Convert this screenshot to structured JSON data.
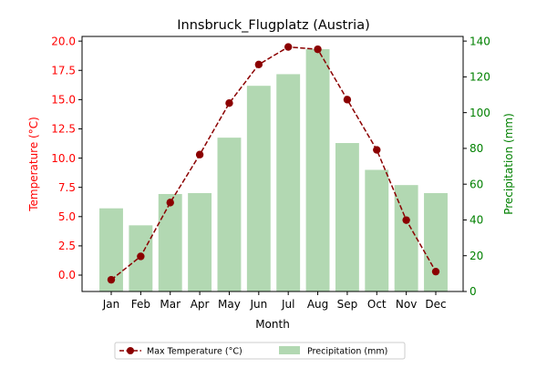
{
  "chart_data": {
    "type": "bar+line",
    "title": "Innsbruck_Flugplatz (Austria)",
    "xlabel": "Month",
    "ylabel_left": "Temperature (°C)",
    "ylabel_right": "Precipitation (mm)",
    "categories": [
      "Jan",
      "Feb",
      "Mar",
      "Apr",
      "May",
      "Jun",
      "Jul",
      "Aug",
      "Sep",
      "Oct",
      "Nov",
      "Dec"
    ],
    "ylim_left": [
      -1.4,
      20.4
    ],
    "ylim_right": [
      0,
      142.6
    ],
    "yticks_left": [
      "0.0",
      "2.5",
      "5.0",
      "7.5",
      "10.0",
      "12.5",
      "15.0",
      "17.5",
      "20.0"
    ],
    "yticks_left_values": [
      0,
      2.5,
      5,
      7.5,
      10,
      12.5,
      15,
      17.5,
      20
    ],
    "yticks_right": [
      "0",
      "20",
      "40",
      "60",
      "80",
      "100",
      "120",
      "140"
    ],
    "yticks_right_values": [
      0,
      20,
      40,
      60,
      80,
      100,
      120,
      140
    ],
    "series": [
      {
        "name": "Max Temperature (°C)",
        "type": "line",
        "axis": "left",
        "color": "#8b0000",
        "values": [
          -0.4,
          1.6,
          6.2,
          10.3,
          14.7,
          18.0,
          19.5,
          19.3,
          15.0,
          10.7,
          4.7,
          0.3
        ]
      },
      {
        "name": "Precipitation (mm)",
        "type": "bar",
        "axis": "right",
        "color": "#b2d8b2",
        "values": [
          46.5,
          37,
          54.5,
          55,
          86,
          115,
          121.5,
          135.5,
          83,
          68,
          59.5,
          55
        ]
      }
    ],
    "left_axis_color": "#ff0000",
    "right_axis_color": "#008000",
    "grid": false,
    "legend_position": "bottom-center"
  }
}
